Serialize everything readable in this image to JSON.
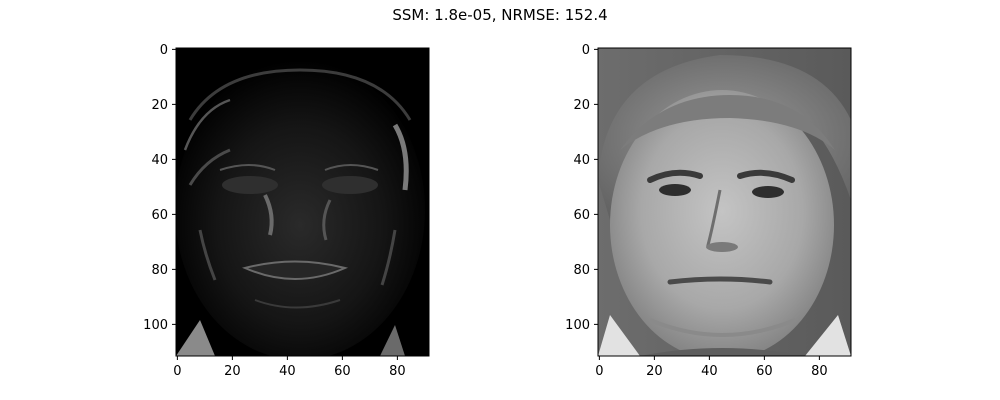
{
  "figure": {
    "title": "SSM: 1.8e-05, NRMSE: 152.4"
  },
  "chart_data": [
    {
      "type": "heatmap",
      "image_description": "grayscale face image, mostly black with faint edge outlines (difference image)",
      "colormap": "gray",
      "xlim": [
        -0.5,
        91.5
      ],
      "ylim": [
        111.5,
        -0.5
      ],
      "x_ticks": [
        "0",
        "20",
        "40",
        "60",
        "80"
      ],
      "y_ticks": [
        "0",
        "20",
        "40",
        "60",
        "80",
        "100"
      ]
    },
    {
      "type": "heatmap",
      "image_description": "grayscale portrait photograph of a man's face",
      "colormap": "gray",
      "xlim": [
        -0.5,
        91.5
      ],
      "ylim": [
        111.5,
        -0.5
      ],
      "x_ticks": [
        "0",
        "20",
        "40",
        "60",
        "80"
      ],
      "y_ticks": [
        "0",
        "20",
        "40",
        "60",
        "80",
        "100"
      ]
    }
  ]
}
